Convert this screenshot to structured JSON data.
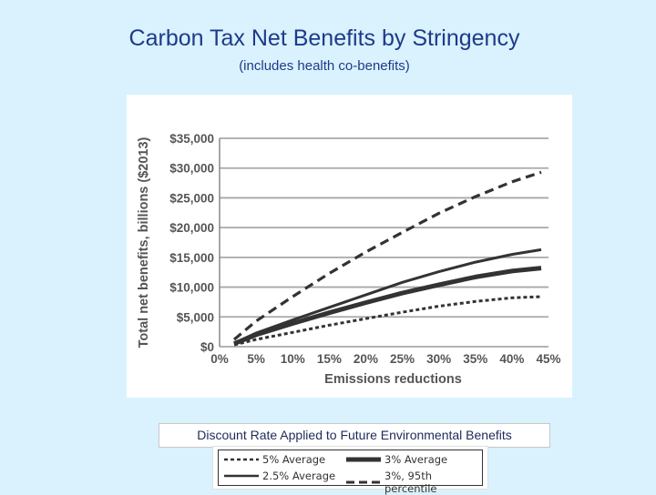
{
  "header": {
    "title": "Carbon Tax Net Benefits by Stringency",
    "subtitle": "(includes health co-benefits)"
  },
  "legend_caption": "Discount Rate Applied to Future Environmental Benefits",
  "chart_data": {
    "type": "line",
    "title": "Carbon Tax Net Benefits by Stringency",
    "subtitle": "(includes health co-benefits)",
    "xlabel": "Emissions reductions",
    "ylabel": "Total net benefits, billions ($2013)",
    "xlim": [
      0,
      45
    ],
    "ylim": [
      0,
      35000
    ],
    "x_ticks": [
      0,
      5,
      10,
      15,
      20,
      25,
      30,
      35,
      40,
      45
    ],
    "x_tick_labels": [
      "0%",
      "5%",
      "10%",
      "15%",
      "20%",
      "25%",
      "30%",
      "35%",
      "40%",
      "45%"
    ],
    "y_ticks": [
      0,
      5000,
      10000,
      15000,
      20000,
      25000,
      30000,
      35000
    ],
    "y_tick_labels": [
      "$0",
      "$5,000",
      "$10,000",
      "$15,000",
      "$20,000",
      "$25,000",
      "$30,000",
      "$35,000"
    ],
    "grid": "horizontal",
    "series": [
      {
        "name": "5% Average",
        "style": "short-dash",
        "x": [
          2,
          5,
          10,
          15,
          20,
          25,
          30,
          35,
          40,
          44
        ],
        "values": [
          300,
          1200,
          2400,
          3600,
          4700,
          5800,
          6800,
          7600,
          8200,
          8400
        ]
      },
      {
        "name": "3% Average",
        "style": "thick-solid",
        "x": [
          2,
          5,
          10,
          15,
          20,
          25,
          30,
          35,
          40,
          44
        ],
        "values": [
          500,
          2000,
          3900,
          5700,
          7400,
          9000,
          10400,
          11700,
          12700,
          13200
        ]
      },
      {
        "name": "2.5% Average",
        "style": "solid",
        "x": [
          2,
          5,
          10,
          15,
          20,
          25,
          30,
          35,
          40,
          44
        ],
        "values": [
          600,
          2300,
          4500,
          6600,
          8700,
          10800,
          12600,
          14200,
          15500,
          16300
        ]
      },
      {
        "name": "3%, 95th percentile",
        "style": "long-dash",
        "x": [
          2,
          5,
          10,
          15,
          20,
          25,
          30,
          35,
          40,
          44
        ],
        "values": [
          1200,
          4300,
          8400,
          12300,
          15900,
          19200,
          22400,
          25200,
          27700,
          29300
        ]
      }
    ]
  }
}
